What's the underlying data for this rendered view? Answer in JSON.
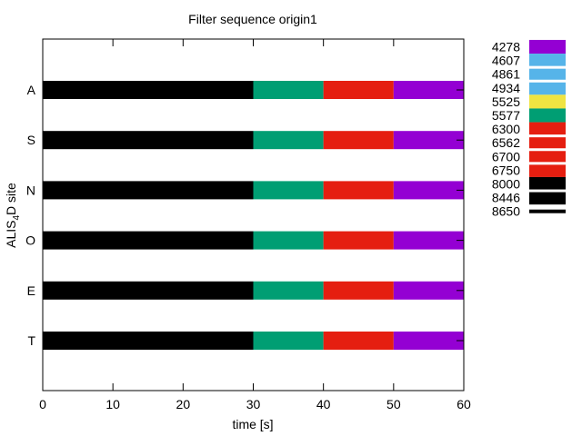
{
  "chart_data": {
    "type": "bar",
    "orientation": "horizontal-stacked",
    "title": "Filter sequence origin1",
    "xlabel": "time [s]",
    "ylabel": {
      "prefix": "ALIS",
      "subscript": "4",
      "suffix": "D site"
    },
    "xlim": [
      0,
      60
    ],
    "xticks": [
      0,
      10,
      20,
      30,
      40,
      50,
      60
    ],
    "categories": [
      "A",
      "S",
      "N",
      "O",
      "E",
      "T"
    ],
    "segments": [
      {
        "name": "8000–8446",
        "start": 0,
        "end": 30,
        "color": "#000000"
      },
      {
        "name": "5577",
        "start": 30,
        "end": 40,
        "color": "#009e73"
      },
      {
        "name": "6300",
        "start": 40,
        "end": 50,
        "color": "#e51e10"
      },
      {
        "name": "4278",
        "start": 50,
        "end": 60,
        "color": "#9400d3"
      }
    ],
    "grid": false,
    "legend_position": "right",
    "legend": {
      "labels": [
        "4278",
        "4607",
        "4861",
        "4934",
        "5525",
        "5577",
        "6300",
        "6562",
        "6700",
        "6750",
        "8000",
        "8446",
        "8650"
      ],
      "bands": [
        {
          "from": 4278,
          "to": 4607,
          "color": "#9400d3"
        },
        {
          "from": 4607,
          "to": 4861,
          "color": "#56b4e9"
        },
        {
          "from": 4861,
          "to": 4934,
          "color": "#56b4e9"
        },
        {
          "from": 4934,
          "to": 5525,
          "color": "#56b4e9"
        },
        {
          "from": 5525,
          "to": 5577,
          "color": "#f0e442"
        },
        {
          "from": 5577,
          "to": 6300,
          "color": "#009e73"
        },
        {
          "from": 6300,
          "to": 6562,
          "color": "#e51e10"
        },
        {
          "from": 6562,
          "to": 6700,
          "color": "#e51e10"
        },
        {
          "from": 6700,
          "to": 6750,
          "color": "#e51e10"
        },
        {
          "from": 6750,
          "to": 8000,
          "color": "#e51e10"
        },
        {
          "from": 8000,
          "to": 8446,
          "color": "#000000"
        },
        {
          "from": 8446,
          "to": 8650,
          "color": "#000000"
        }
      ]
    }
  }
}
